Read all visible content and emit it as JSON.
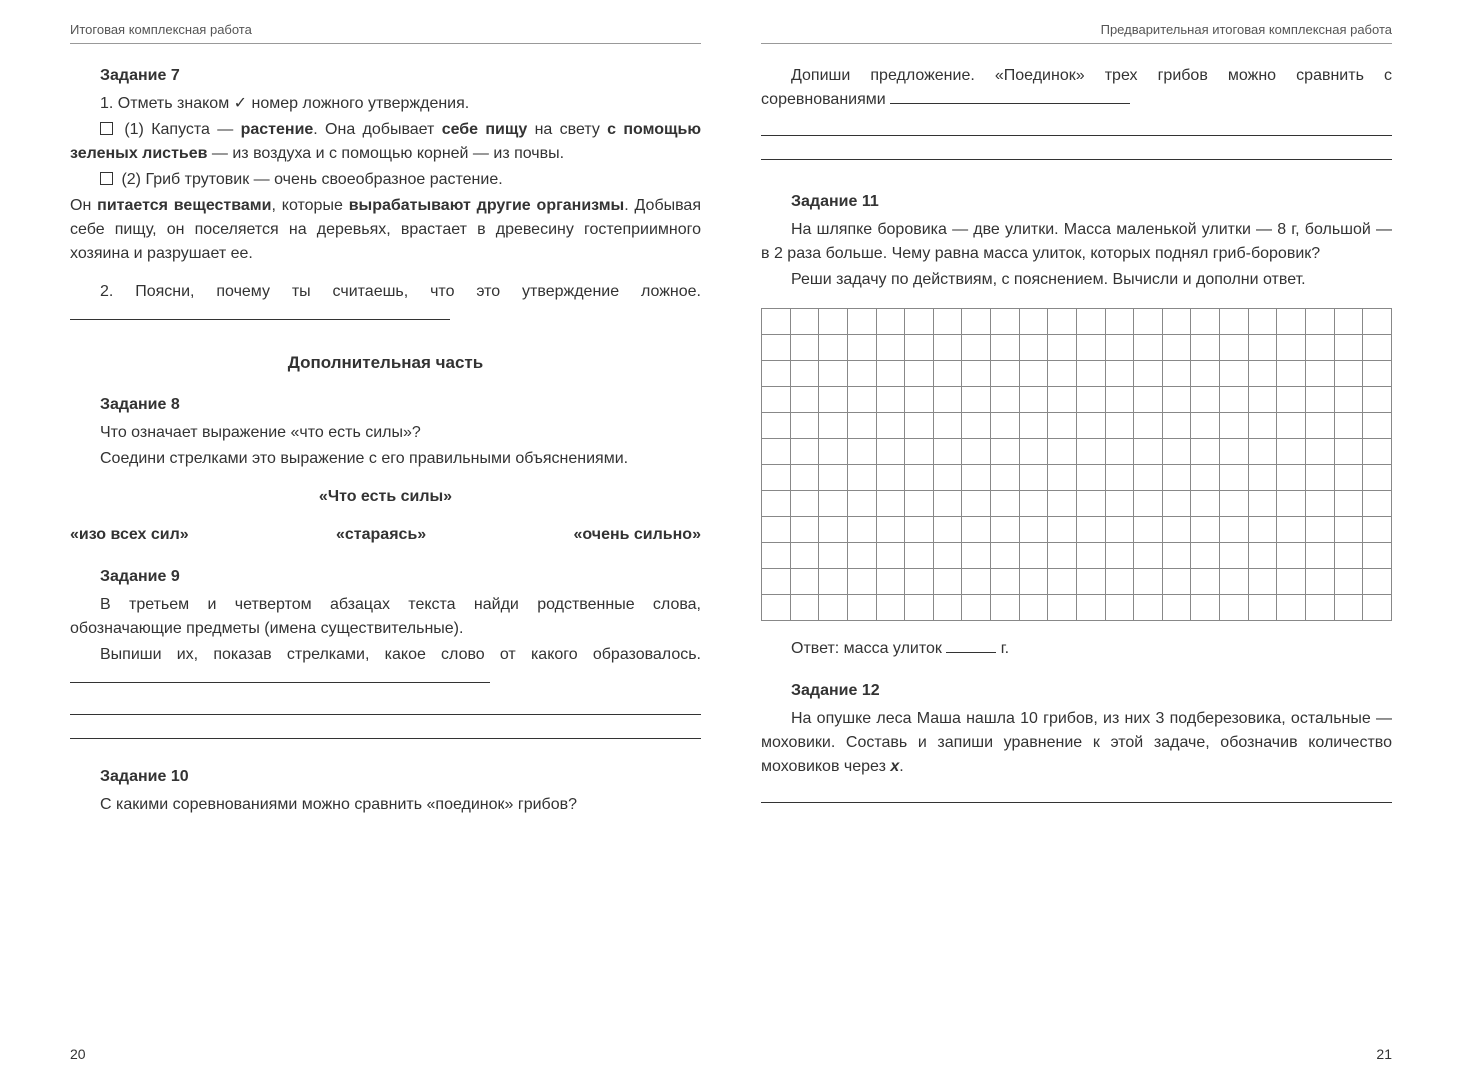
{
  "left": {
    "header": "Итоговая комплексная работа",
    "task7": {
      "title": "Задание 7",
      "line1": "1. Отметь знаком ✓ номер ложного утверждения.",
      "opt1_a": "(1) Капуста — ",
      "opt1_b": "растение",
      "opt1_c": ". Она добывает ",
      "opt1_d": "себе пищу",
      "opt1_e": " на свету ",
      "opt1_f": "с помощью зеленых листьев",
      "opt1_g": " — из воздуха и с помощью корней — из почвы.",
      "opt2_a": "(2) Гриб трутовик — очень своеобразное растение.",
      "opt2_b": "Он ",
      "opt2_c": "питается веществами",
      "opt2_d": ", которые ",
      "opt2_e": "вырабатывают другие организмы",
      "opt2_f": ". Добывая себе пищу, он поселяется на деревьях, врастает в древесину гостеприимного хозяина и разрушает ее.",
      "line2": "2. Поясни, почему ты считаешь, что это утверждение ложное."
    },
    "extra_title": "Дополнительная часть",
    "task8": {
      "title": "Задание 8",
      "line1": "Что означает выражение «что есть силы»?",
      "line2": "Соедини стрелками это выражение с его правильными объяснениями.",
      "center": "«Что есть силы»",
      "opt_a": "«изо всех сил»",
      "opt_b": "«стараясь»",
      "opt_c": "«очень сильно»"
    },
    "task9": {
      "title": "Задание 9",
      "line1": "В третьем и четвертом абзацах текста найди родственные слова, обозначающие предметы (имена существительные).",
      "line2": "Выпиши их, показав стрелками, какое слово от какого образовалось."
    },
    "task10": {
      "title": "Задание 10",
      "line1": "С какими соревнованиями можно сравнить «поединок» грибов?"
    },
    "page_num": "20"
  },
  "right": {
    "header": "Предварительная итоговая комплексная работа",
    "cont": "Допиши предложение. «Поединок» трех грибов можно сравнить с соревнованиями",
    "task11": {
      "title": "Задание 11",
      "line1": "На шляпке боровика — две улитки. Масса маленькой улитки — 8 г, большой — в 2 раза больше. Чему равна масса улиток, которых поднял гриб-боровик?",
      "line2": "Реши задачу по действиям, с пояснением. Вычисли и дополни ответ.",
      "answer_label": "Ответ: масса улиток",
      "answer_unit": "г."
    },
    "grid": {
      "rows": 12,
      "cols": 22
    },
    "task12": {
      "title": "Задание 12",
      "line1a": "На опушке леса Маша нашла 10 грибов, из них 3 подберезовика, остальные — моховики. Составь и запиши уравнение к этой задаче, обозначив количество моховиков через ",
      "var": "x",
      "line1b": "."
    },
    "page_num": "21"
  }
}
